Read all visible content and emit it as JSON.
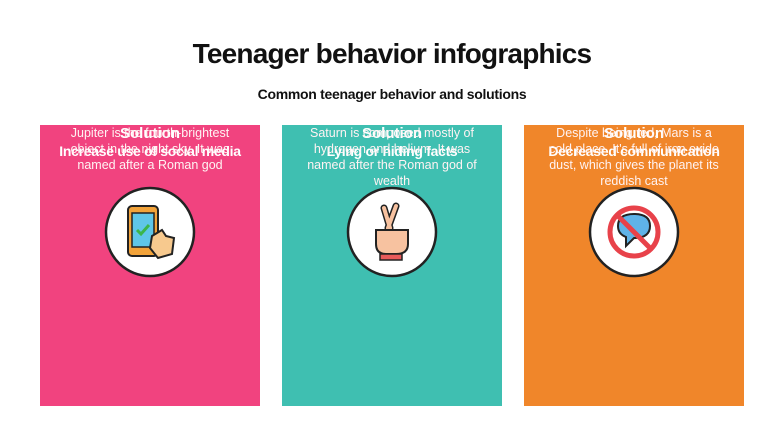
{
  "header": {
    "title": "Teenager behavior infographics",
    "subtitle": "Common teenager behavior and solutions"
  },
  "cards": [
    {
      "heading": "Increase use of social media",
      "label": "Solution",
      "text": "Jupiter is the fourth-brightest object in the night sky. It was named after a Roman god"
    },
    {
      "heading": "Lying or hiding facts",
      "label": "Solution",
      "text": "Saturn is composed mostly of hydrogen and helium. It was named after the Roman god of wealth"
    },
    {
      "heading": "Decreased communication",
      "label": "Solution",
      "text": "Despite being red, Mars is a cold place. It's full of iron oxide dust, which gives the planet its reddish cast"
    }
  ]
}
